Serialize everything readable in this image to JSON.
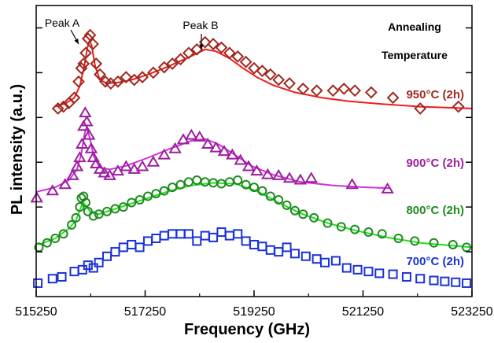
{
  "chart_data": {
    "type": "scatter",
    "xlabel": "Frequency (GHz)",
    "ylabel": "PL intensity (a.u.)",
    "xlim": [
      515250,
      523250
    ],
    "ylim": [
      0,
      3.25
    ],
    "xticks": [
      515250,
      517250,
      519250,
      521250,
      523250
    ],
    "grid": false,
    "legend_title_lines": [
      "Annealing",
      "Temperature"
    ],
    "annotations": [
      {
        "label": "Peak  A",
        "x": 516200
      },
      {
        "label": "Peak  B",
        "x": 518350
      }
    ],
    "series": [
      {
        "name": "950°C (2h)",
        "marker": "diamond",
        "color": "#a0281e",
        "fit_color": "#ee1c1c",
        "points": [
          [
            515650,
            2.1
          ],
          [
            515750,
            2.12
          ],
          [
            515850,
            2.16
          ],
          [
            515950,
            2.22
          ],
          [
            516030,
            2.4
          ],
          [
            516080,
            2.55
          ],
          [
            516120,
            2.6
          ],
          [
            516160,
            2.72
          ],
          [
            516200,
            2.88
          ],
          [
            516240,
            2.92
          ],
          [
            516290,
            2.82
          ],
          [
            516350,
            2.6
          ],
          [
            516420,
            2.48
          ],
          [
            516520,
            2.4
          ],
          [
            516620,
            2.38
          ],
          [
            516750,
            2.4
          ],
          [
            516900,
            2.45
          ],
          [
            517050,
            2.42
          ],
          [
            517200,
            2.45
          ],
          [
            517400,
            2.5
          ],
          [
            517600,
            2.56
          ],
          [
            517750,
            2.6
          ],
          [
            517900,
            2.65
          ],
          [
            518050,
            2.72
          ],
          [
            518200,
            2.76
          ],
          [
            518350,
            2.84
          ],
          [
            518500,
            2.82
          ],
          [
            518650,
            2.78
          ],
          [
            518800,
            2.72
          ],
          [
            518950,
            2.68
          ],
          [
            519100,
            2.62
          ],
          [
            519250,
            2.55
          ],
          [
            519400,
            2.52
          ],
          [
            519550,
            2.48
          ],
          [
            519700,
            2.42
          ],
          [
            519900,
            2.38
          ],
          [
            520150,
            2.32
          ],
          [
            520400,
            2.3
          ],
          [
            520700,
            2.3
          ],
          [
            520900,
            2.32
          ],
          [
            521100,
            2.3
          ],
          [
            521400,
            2.28
          ],
          [
            521800,
            2.22
          ],
          [
            522300,
            2.1
          ],
          [
            523000,
            2.12
          ]
        ],
        "fit": [
          [
            515600,
            2.12
          ],
          [
            515800,
            2.16
          ],
          [
            515950,
            2.22
          ],
          [
            516050,
            2.35
          ],
          [
            516130,
            2.56
          ],
          [
            516190,
            2.78
          ],
          [
            516230,
            2.86
          ],
          [
            516270,
            2.8
          ],
          [
            516330,
            2.58
          ],
          [
            516420,
            2.42
          ],
          [
            516550,
            2.38
          ],
          [
            516750,
            2.39
          ],
          [
            517000,
            2.42
          ],
          [
            517300,
            2.48
          ],
          [
            517600,
            2.55
          ],
          [
            517900,
            2.63
          ],
          [
            518150,
            2.7
          ],
          [
            518350,
            2.76
          ],
          [
            518550,
            2.74
          ],
          [
            518800,
            2.66
          ],
          [
            519050,
            2.55
          ],
          [
            519300,
            2.45
          ],
          [
            519600,
            2.36
          ],
          [
            520000,
            2.28
          ],
          [
            520500,
            2.22
          ],
          [
            521000,
            2.18
          ],
          [
            521600,
            2.15
          ],
          [
            522300,
            2.12
          ],
          [
            523250,
            2.1
          ]
        ]
      },
      {
        "name": "900°C (2h)",
        "marker": "triangle",
        "color": "#9b1f9e",
        "fit_color": "#d030d8",
        "points": [
          [
            515260,
            1.1
          ],
          [
            515550,
            1.18
          ],
          [
            515780,
            1.25
          ],
          [
            515920,
            1.35
          ],
          [
            516000,
            1.45
          ],
          [
            516050,
            1.55
          ],
          [
            516090,
            1.7
          ],
          [
            516120,
            1.9
          ],
          [
            516150,
            2.05
          ],
          [
            516180,
            1.95
          ],
          [
            516220,
            1.8
          ],
          [
            516260,
            1.65
          ],
          [
            516300,
            1.55
          ],
          [
            516350,
            1.48
          ],
          [
            516420,
            1.42
          ],
          [
            516500,
            1.38
          ],
          [
            516600,
            1.35
          ],
          [
            516750,
            1.4
          ],
          [
            516900,
            1.45
          ],
          [
            517050,
            1.42
          ],
          [
            517200,
            1.45
          ],
          [
            517400,
            1.5
          ],
          [
            517600,
            1.58
          ],
          [
            517800,
            1.65
          ],
          [
            517950,
            1.75
          ],
          [
            518100,
            1.8
          ],
          [
            518250,
            1.78
          ],
          [
            518400,
            1.7
          ],
          [
            518550,
            1.66
          ],
          [
            518700,
            1.62
          ],
          [
            518850,
            1.58
          ],
          [
            519000,
            1.52
          ],
          [
            519150,
            1.45
          ],
          [
            519300,
            1.4
          ],
          [
            519500,
            1.36
          ],
          [
            519700,
            1.35
          ],
          [
            519900,
            1.32
          ],
          [
            520100,
            1.3
          ],
          [
            520300,
            1.32
          ],
          [
            521050,
            1.25
          ],
          [
            521700,
            1.2
          ]
        ],
        "fit": [
          [
            515260,
            1.17
          ],
          [
            515600,
            1.22
          ],
          [
            515850,
            1.3
          ],
          [
            516000,
            1.42
          ],
          [
            516080,
            1.6
          ],
          [
            516140,
            1.82
          ],
          [
            516180,
            1.9
          ],
          [
            516230,
            1.78
          ],
          [
            516310,
            1.56
          ],
          [
            516420,
            1.44
          ],
          [
            516600,
            1.42
          ],
          [
            516900,
            1.46
          ],
          [
            517300,
            1.55
          ],
          [
            517700,
            1.65
          ],
          [
            518100,
            1.74
          ],
          [
            518350,
            1.76
          ],
          [
            518600,
            1.7
          ],
          [
            518900,
            1.58
          ],
          [
            519200,
            1.46
          ],
          [
            519600,
            1.36
          ],
          [
            520100,
            1.28
          ],
          [
            520700,
            1.24
          ],
          [
            521300,
            1.22
          ],
          [
            521750,
            1.21
          ]
        ]
      },
      {
        "name": "800°C (2h)",
        "marker": "circle",
        "color": "#1e8a1e",
        "fit_color": "#22dd22",
        "points": [
          [
            515300,
            0.55
          ],
          [
            515450,
            0.6
          ],
          [
            515600,
            0.65
          ],
          [
            515750,
            0.7
          ],
          [
            515900,
            0.8
          ],
          [
            515980,
            0.88
          ],
          [
            516050,
            1.0
          ],
          [
            516080,
            1.1
          ],
          [
            516120,
            1.12
          ],
          [
            516160,
            1.05
          ],
          [
            516200,
            0.95
          ],
          [
            516300,
            0.9
          ],
          [
            516400,
            0.92
          ],
          [
            516550,
            0.95
          ],
          [
            516700,
            0.98
          ],
          [
            516850,
            1.0
          ],
          [
            517000,
            1.05
          ],
          [
            517150,
            1.08
          ],
          [
            517300,
            1.12
          ],
          [
            517450,
            1.15
          ],
          [
            517600,
            1.18
          ],
          [
            517750,
            1.22
          ],
          [
            517900,
            1.25
          ],
          [
            518050,
            1.28
          ],
          [
            518200,
            1.3
          ],
          [
            518350,
            1.28
          ],
          [
            518500,
            1.27
          ],
          [
            518650,
            1.26
          ],
          [
            518800,
            1.28
          ],
          [
            518950,
            1.3
          ],
          [
            519100,
            1.25
          ],
          [
            519250,
            1.22
          ],
          [
            519400,
            1.18
          ],
          [
            519550,
            1.12
          ],
          [
            519700,
            1.08
          ],
          [
            519850,
            1.02
          ],
          [
            520000,
            0.96
          ],
          [
            520150,
            0.92
          ],
          [
            520350,
            0.88
          ],
          [
            520600,
            0.82
          ],
          [
            520850,
            0.78
          ],
          [
            521100,
            0.75
          ],
          [
            521350,
            0.72
          ],
          [
            521600,
            0.7
          ],
          [
            521900,
            0.65
          ],
          [
            522200,
            0.62
          ],
          [
            522550,
            0.6
          ],
          [
            522900,
            0.58
          ],
          [
            523150,
            0.55
          ]
        ],
        "fit": [
          [
            515300,
            0.58
          ],
          [
            515600,
            0.65
          ],
          [
            515850,
            0.76
          ],
          [
            515980,
            0.85
          ],
          [
            516060,
            0.98
          ],
          [
            516110,
            1.05
          ],
          [
            516160,
            1.02
          ],
          [
            516250,
            0.94
          ],
          [
            516400,
            0.92
          ],
          [
            516600,
            0.96
          ],
          [
            516900,
            1.02
          ],
          [
            517300,
            1.1
          ],
          [
            517700,
            1.18
          ],
          [
            518100,
            1.24
          ],
          [
            518500,
            1.27
          ],
          [
            518900,
            1.26
          ],
          [
            519300,
            1.18
          ],
          [
            519700,
            1.05
          ],
          [
            520100,
            0.93
          ],
          [
            520600,
            0.82
          ],
          [
            521100,
            0.74
          ],
          [
            521700,
            0.66
          ],
          [
            522300,
            0.6
          ],
          [
            523250,
            0.55
          ]
        ]
      },
      {
        "name": "700°C (2h)",
        "marker": "square",
        "color": "#1a32d6",
        "points": [
          [
            515280,
            0.15
          ],
          [
            515550,
            0.2
          ],
          [
            515720,
            0.22
          ],
          [
            515950,
            0.28
          ],
          [
            516100,
            0.3
          ],
          [
            516200,
            0.35
          ],
          [
            516300,
            0.32
          ],
          [
            516400,
            0.38
          ],
          [
            516550,
            0.45
          ],
          [
            516700,
            0.5
          ],
          [
            516850,
            0.55
          ],
          [
            517000,
            0.58
          ],
          [
            517150,
            0.55
          ],
          [
            517300,
            0.62
          ],
          [
            517450,
            0.65
          ],
          [
            517600,
            0.68
          ],
          [
            517750,
            0.7
          ],
          [
            517900,
            0.7
          ],
          [
            518050,
            0.7
          ],
          [
            518200,
            0.62
          ],
          [
            518350,
            0.68
          ],
          [
            518500,
            0.66
          ],
          [
            518650,
            0.72
          ],
          [
            518800,
            0.68
          ],
          [
            518950,
            0.7
          ],
          [
            519100,
            0.62
          ],
          [
            519250,
            0.58
          ],
          [
            519400,
            0.56
          ],
          [
            519550,
            0.52
          ],
          [
            519700,
            0.5
          ],
          [
            519850,
            0.55
          ],
          [
            520000,
            0.48
          ],
          [
            520200,
            0.45
          ],
          [
            520400,
            0.42
          ],
          [
            520550,
            0.38
          ],
          [
            520750,
            0.4
          ],
          [
            520950,
            0.32
          ],
          [
            521150,
            0.3
          ],
          [
            521350,
            0.28
          ],
          [
            521550,
            0.26
          ],
          [
            521800,
            0.25
          ],
          [
            522050,
            0.22
          ],
          [
            522300,
            0.2
          ],
          [
            522550,
            0.18
          ],
          [
            522750,
            0.17
          ],
          [
            522950,
            0.16
          ],
          [
            523150,
            0.15
          ]
        ]
      }
    ]
  }
}
